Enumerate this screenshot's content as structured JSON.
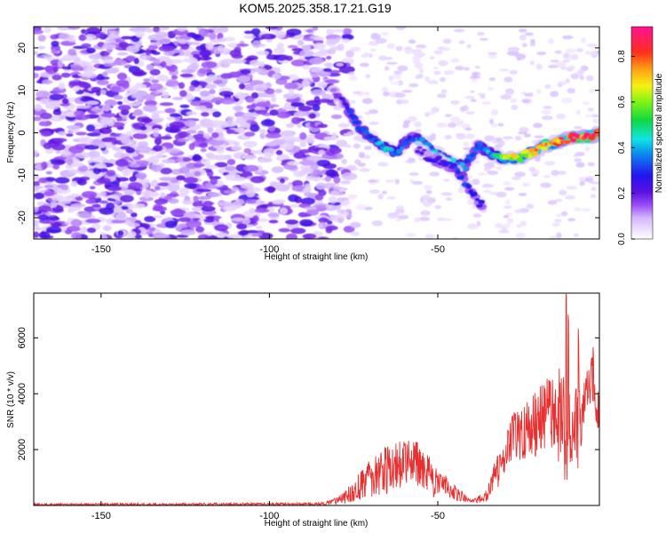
{
  "title": "KOM5.2025.358.17.21.G19",
  "chart_data": [
    {
      "type": "heatmap",
      "name": "spectrogram",
      "xlabel": "Height of straight line (km)",
      "ylabel": "Frequency (Hz)",
      "xlim": [
        -170,
        -2
      ],
      "ylim": [
        -25,
        25
      ],
      "xticks": [
        -150,
        -100,
        -50
      ],
      "yticks": [
        -20,
        -10,
        0,
        10,
        20
      ],
      "xtick_labels": [
        "-150",
        "-100",
        "-50"
      ],
      "ytick_labels": [
        "-20",
        "-10",
        "0",
        "10",
        "20"
      ],
      "colorbar": {
        "label": "Normalized spectral amplitude",
        "range": [
          0.0,
          0.93
        ],
        "ticks": [
          0.0,
          0.2,
          0.4,
          0.6,
          0.8
        ],
        "tick_labels": [
          "0.0",
          "0.2",
          "0.4",
          "0.6",
          "0.8"
        ]
      },
      "noise_region_x": [
        -170,
        -80
      ],
      "signal_track": {
        "x": [
          -81,
          -78,
          -74,
          -70,
          -66,
          -62,
          -58,
          -55,
          -52,
          -49,
          -46,
          -42,
          -38,
          -34,
          -30,
          -26,
          -22,
          -18,
          -14,
          -10,
          -6,
          -2
        ],
        "freq": [
          10,
          7,
          2,
          -1,
          -3.5,
          -4.5,
          -1,
          -2,
          -4,
          -5.5,
          -7,
          -8,
          -3,
          -5,
          -6,
          -6,
          -4.5,
          -3,
          -2,
          -1,
          -1,
          0
        ],
        "amp": [
          0.15,
          0.2,
          0.35,
          0.3,
          0.45,
          0.35,
          0.3,
          0.35,
          0.4,
          0.45,
          0.4,
          0.35,
          0.3,
          0.4,
          0.6,
          0.65,
          0.7,
          0.75,
          0.8,
          0.85,
          0.9,
          0.85
        ]
      },
      "secondary_track": {
        "x": [
          -56,
          -52,
          -48,
          -44,
          -40,
          -37
        ],
        "freq": [
          -4,
          -6,
          -7,
          -9,
          -14,
          -17
        ],
        "amp": [
          0.2,
          0.25,
          0.25,
          0.3,
          0.3,
          0.25
        ]
      }
    },
    {
      "type": "line",
      "name": "snr",
      "color": "#e83030",
      "xlabel": "Height of straight line (km)",
      "ylabel": "SNR (10 * v/v)",
      "xlim": [
        -170,
        -2
      ],
      "ylim": [
        0,
        7600
      ],
      "xticks": [
        -150,
        -100,
        -50
      ],
      "yticks": [
        2000,
        4000,
        6000
      ],
      "xtick_labels": [
        "-150",
        "-100",
        "-50"
      ],
      "ytick_labels": [
        "2000",
        "4000",
        "6000"
      ],
      "envelope": {
        "x": [
          -170,
          -90,
          -83,
          -78,
          -72,
          -65,
          -60,
          -56,
          -52,
          -48,
          -44,
          -40,
          -36,
          -32,
          -29,
          -25,
          -20,
          -15,
          -12,
          -10,
          -8,
          -6,
          -4,
          -2
        ],
        "mean": [
          30,
          50,
          80,
          250,
          800,
          1300,
          1600,
          1500,
          1000,
          700,
          400,
          150,
          300,
          1300,
          2300,
          2600,
          3000,
          3400,
          2800,
          2600,
          2800,
          4200,
          4500,
          3100
        ],
        "amp": [
          40,
          50,
          80,
          200,
          600,
          900,
          900,
          800,
          700,
          450,
          250,
          60,
          200,
          700,
          900,
          1000,
          1200,
          1600,
          2000,
          1500,
          1500,
          600,
          900,
          800
        ]
      },
      "peaks": {
        "x": [
          -11.8,
          -11.2,
          -8.2,
          -3.8
        ],
        "value": [
          7600,
          7000,
          6400,
          6000
        ]
      },
      "points": 1340,
      "seed": 20251
    }
  ]
}
